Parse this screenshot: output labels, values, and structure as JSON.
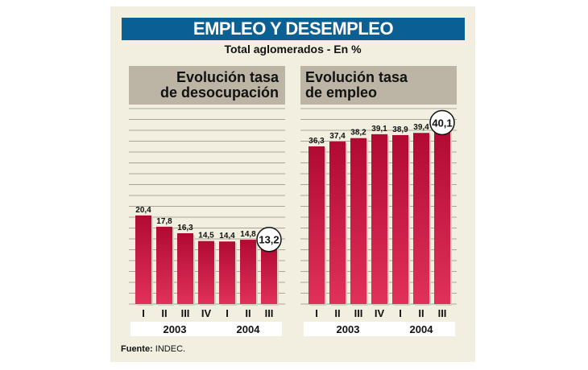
{
  "title": "EMPLEO Y DESEMPLEO",
  "subtitle": "Total aglomerados - En %",
  "source_label": "Fuente:",
  "source_value": "INDEC.",
  "colors": {
    "title_bar": "#0a5f93",
    "bar": "#c8103e",
    "header": "#bcb5a6",
    "background": "#f3efe0"
  },
  "chart_data": [
    {
      "type": "bar",
      "title_lines": [
        "Evolución tasa",
        "de desocupación"
      ],
      "categories": [
        "I",
        "II",
        "III",
        "IV",
        "I",
        "II",
        "III"
      ],
      "groups": [
        {
          "label": "2003",
          "count": 4
        },
        {
          "label": "2004",
          "count": 3
        }
      ],
      "values": [
        20.4,
        17.8,
        16.3,
        14.5,
        14.4,
        14.8,
        13.2
      ],
      "labels": [
        "20,4",
        "17,8",
        "16,3",
        "14,5",
        "14,4",
        "14,8",
        "13,2"
      ],
      "highlight_index": 6,
      "ylim": [
        0,
        45
      ],
      "grid": true
    },
    {
      "type": "bar",
      "title_lines": [
        "Evolución tasa",
        "de empleo"
      ],
      "categories": [
        "I",
        "II",
        "III",
        "IV",
        "I",
        "II",
        "III"
      ],
      "groups": [
        {
          "label": "2003",
          "count": 4
        },
        {
          "label": "2004",
          "count": 3
        }
      ],
      "values": [
        36.3,
        37.4,
        38.2,
        39.1,
        38.9,
        39.4,
        40.1
      ],
      "labels": [
        "36,3",
        "37,4",
        "38,2",
        "39,1",
        "38,9",
        "39,4",
        "40,1"
      ],
      "highlight_index": 6,
      "ylim": [
        0,
        45
      ],
      "grid": true
    }
  ]
}
